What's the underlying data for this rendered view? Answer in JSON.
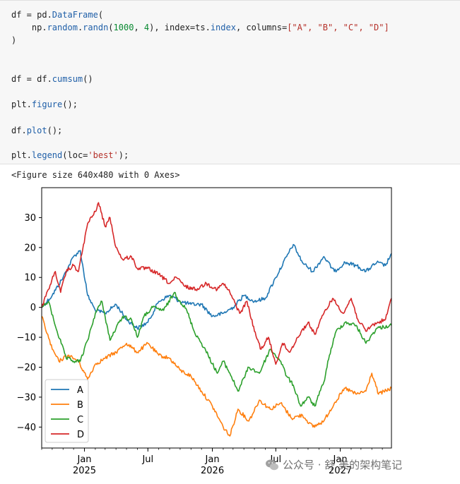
{
  "code_cell": {
    "line1": {
      "a": "df = pd.",
      "b": "DataFrame",
      "c": "("
    },
    "line2": {
      "a": "    np.",
      "b": "random",
      "c": ".",
      "d": "randn",
      "e": "(",
      "f": "1000",
      "g": ", ",
      "h": "4",
      "i": "), index=ts.",
      "j": "index",
      "k": ", columns=",
      "l": "[\"A\", \"B\", \"C\", \"D\"]"
    },
    "line3": ")",
    "line4": {
      "a": "df = df.",
      "b": "cumsum",
      "c": "()"
    },
    "line5": {
      "a": "plt.",
      "b": "figure",
      "c": "();"
    },
    "line6": {
      "a": "df.",
      "b": "plot",
      "c": "();"
    },
    "line7": {
      "a": "plt.",
      "b": "legend",
      "c": "(loc=",
      "d": "'best'",
      "e": ");"
    }
  },
  "output": {
    "text": "<Figure size 640x480 with 0 Axes>"
  },
  "watermark": {
    "text": "公众号 · 舒 美的架构笔记",
    "icon": "wechat-icon"
  },
  "chart_data": {
    "type": "line",
    "title": "",
    "xlabel": "",
    "ylabel": "",
    "x_start": "2024-09-01",
    "x_end": "2027-05-27",
    "x_ticks": [
      {
        "date": "2025-01-01",
        "label": "Jan",
        "year": "2025"
      },
      {
        "date": "2025-07-01",
        "label": "Jul",
        "year": ""
      },
      {
        "date": "2026-01-01",
        "label": "Jan",
        "year": "2026"
      },
      {
        "date": "2026-07-01",
        "label": "Jul",
        "year": ""
      },
      {
        "date": "2027-01-01",
        "label": "Jan",
        "year": "2027"
      }
    ],
    "ylim": [
      -47,
      40
    ],
    "y_ticks": [
      30,
      20,
      10,
      0,
      -10,
      -20,
      -30,
      -40
    ],
    "grid": false,
    "legend_position": "lower-left",
    "series": [
      {
        "name": "A",
        "color": "#1f77b4",
        "points": [
          [
            "2024-09-01",
            0
          ],
          [
            "2024-10-01",
            4
          ],
          [
            "2024-11-01",
            10
          ],
          [
            "2024-12-01",
            17
          ],
          [
            "2024-12-20",
            19
          ],
          [
            "2025-01-10",
            4
          ],
          [
            "2025-02-01",
            -1
          ],
          [
            "2025-03-01",
            -2
          ],
          [
            "2025-04-01",
            1
          ],
          [
            "2025-05-01",
            -4
          ],
          [
            "2025-06-01",
            -7
          ],
          [
            "2025-07-01",
            -5
          ],
          [
            "2025-08-01",
            2
          ],
          [
            "2025-09-01",
            4
          ],
          [
            "2025-10-01",
            2
          ],
          [
            "2025-11-01",
            1
          ],
          [
            "2025-12-01",
            1
          ],
          [
            "2026-01-01",
            -3
          ],
          [
            "2026-02-01",
            -2
          ],
          [
            "2026-03-01",
            0
          ],
          [
            "2026-04-01",
            4
          ],
          [
            "2026-05-01",
            2
          ],
          [
            "2026-06-01",
            3
          ],
          [
            "2026-07-01",
            10
          ],
          [
            "2026-08-01",
            17
          ],
          [
            "2026-08-20",
            21
          ],
          [
            "2026-09-15",
            15
          ],
          [
            "2026-10-15",
            12
          ],
          [
            "2026-11-15",
            17
          ],
          [
            "2026-12-15",
            12
          ],
          [
            "2027-01-15",
            15
          ],
          [
            "2027-02-15",
            14
          ],
          [
            "2027-03-15",
            12
          ],
          [
            "2027-04-15",
            15
          ],
          [
            "2027-05-10",
            14
          ],
          [
            "2027-05-27",
            18
          ]
        ]
      },
      {
        "name": "B",
        "color": "#ff7f0e",
        "points": [
          [
            "2024-09-01",
            -3
          ],
          [
            "2024-10-01",
            -14
          ],
          [
            "2024-10-20",
            -18
          ],
          [
            "2024-11-15",
            -16
          ],
          [
            "2024-12-15",
            -18
          ],
          [
            "2025-01-10",
            -24
          ],
          [
            "2025-02-01",
            -19
          ],
          [
            "2025-03-01",
            -17
          ],
          [
            "2025-04-01",
            -15
          ],
          [
            "2025-05-01",
            -12
          ],
          [
            "2025-06-01",
            -15
          ],
          [
            "2025-07-01",
            -12
          ],
          [
            "2025-08-01",
            -16
          ],
          [
            "2025-09-01",
            -17
          ],
          [
            "2025-10-01",
            -21
          ],
          [
            "2025-11-01",
            -23
          ],
          [
            "2025-12-01",
            -28
          ],
          [
            "2026-01-01",
            -33
          ],
          [
            "2026-02-01",
            -40
          ],
          [
            "2026-02-20",
            -43
          ],
          [
            "2026-03-15",
            -34
          ],
          [
            "2026-04-15",
            -38
          ],
          [
            "2026-05-15",
            -31
          ],
          [
            "2026-06-15",
            -34
          ],
          [
            "2026-07-15",
            -32
          ],
          [
            "2026-08-15",
            -37
          ],
          [
            "2026-09-15",
            -36
          ],
          [
            "2026-10-15",
            -40
          ],
          [
            "2026-11-15",
            -38
          ],
          [
            "2026-12-15",
            -32
          ],
          [
            "2027-01-15",
            -27
          ],
          [
            "2027-02-15",
            -29
          ],
          [
            "2027-03-15",
            -28
          ],
          [
            "2027-04-01",
            -22
          ],
          [
            "2027-04-20",
            -29
          ],
          [
            "2027-05-27",
            -27
          ]
        ]
      },
      {
        "name": "C",
        "color": "#2ca02c",
        "points": [
          [
            "2024-09-01",
            0
          ],
          [
            "2024-09-20",
            2
          ],
          [
            "2024-10-15",
            -8
          ],
          [
            "2024-11-10",
            -17
          ],
          [
            "2024-12-01",
            -18
          ],
          [
            "2024-12-20",
            -18
          ],
          [
            "2025-01-10",
            -11
          ],
          [
            "2025-02-01",
            -2
          ],
          [
            "2025-02-20",
            2
          ],
          [
            "2025-03-15",
            -11
          ],
          [
            "2025-04-01",
            -7
          ],
          [
            "2025-04-20",
            -3
          ],
          [
            "2025-05-15",
            -4
          ],
          [
            "2025-06-01",
            -10
          ],
          [
            "2025-06-20",
            -3
          ],
          [
            "2025-07-15",
            0
          ],
          [
            "2025-08-15",
            -1
          ],
          [
            "2025-09-15",
            5
          ],
          [
            "2025-10-01",
            2
          ],
          [
            "2025-10-20",
            -1
          ],
          [
            "2025-11-10",
            -8
          ],
          [
            "2025-12-01",
            -12
          ],
          [
            "2025-12-20",
            -16
          ],
          [
            "2026-01-15",
            -22
          ],
          [
            "2026-02-01",
            -18
          ],
          [
            "2026-02-20",
            -22
          ],
          [
            "2026-03-15",
            -28
          ],
          [
            "2026-04-15",
            -20
          ],
          [
            "2026-05-15",
            -22
          ],
          [
            "2026-06-15",
            -14
          ],
          [
            "2026-07-15",
            -18
          ],
          [
            "2026-08-01",
            -23
          ],
          [
            "2026-08-20",
            -26
          ],
          [
            "2026-09-10",
            -33
          ],
          [
            "2026-10-01",
            -30
          ],
          [
            "2026-10-20",
            -33
          ],
          [
            "2026-11-15",
            -25
          ],
          [
            "2026-12-01",
            -16
          ],
          [
            "2026-12-20",
            -8
          ],
          [
            "2027-01-15",
            -5
          ],
          [
            "2027-02-15",
            -6
          ],
          [
            "2027-03-15",
            -12
          ],
          [
            "2027-04-15",
            -7
          ],
          [
            "2027-05-27",
            -6
          ]
        ]
      },
      {
        "name": "D",
        "color": "#d62728",
        "points": [
          [
            "2024-09-01",
            0
          ],
          [
            "2024-09-20",
            6
          ],
          [
            "2024-10-10",
            12
          ],
          [
            "2024-10-25",
            5
          ],
          [
            "2024-11-10",
            12
          ],
          [
            "2024-12-01",
            14
          ],
          [
            "2024-12-15",
            12
          ],
          [
            "2025-01-10",
            28
          ],
          [
            "2025-02-01",
            32
          ],
          [
            "2025-02-10",
            35
          ],
          [
            "2025-03-01",
            27
          ],
          [
            "2025-03-15",
            30
          ],
          [
            "2025-04-01",
            20
          ],
          [
            "2025-04-20",
            16
          ],
          [
            "2025-05-15",
            17
          ],
          [
            "2025-06-01",
            13
          ],
          [
            "2025-07-01",
            13
          ],
          [
            "2025-08-01",
            11
          ],
          [
            "2025-09-01",
            8
          ],
          [
            "2025-09-20",
            10
          ],
          [
            "2025-10-15",
            7
          ],
          [
            "2025-11-15",
            6
          ],
          [
            "2025-12-15",
            8
          ],
          [
            "2026-01-15",
            6
          ],
          [
            "2026-02-01",
            8
          ],
          [
            "2026-02-20",
            5
          ],
          [
            "2026-03-20",
            -2
          ],
          [
            "2026-04-10",
            2
          ],
          [
            "2026-05-01",
            -8
          ],
          [
            "2026-05-20",
            -14
          ],
          [
            "2026-06-10",
            -10
          ],
          [
            "2026-07-01",
            -19
          ],
          [
            "2026-07-20",
            -12
          ],
          [
            "2026-08-10",
            -15
          ],
          [
            "2026-09-01",
            -10
          ],
          [
            "2026-10-01",
            -5
          ],
          [
            "2026-10-20",
            -9
          ],
          [
            "2026-11-15",
            -2
          ],
          [
            "2026-12-10",
            3
          ],
          [
            "2027-01-10",
            -2
          ],
          [
            "2027-02-01",
            3
          ],
          [
            "2027-02-20",
            -4
          ],
          [
            "2027-03-15",
            -8
          ],
          [
            "2027-04-01",
            -6
          ],
          [
            "2027-04-20",
            -5
          ],
          [
            "2027-05-10",
            -4
          ],
          [
            "2027-05-27",
            3
          ]
        ]
      }
    ]
  }
}
